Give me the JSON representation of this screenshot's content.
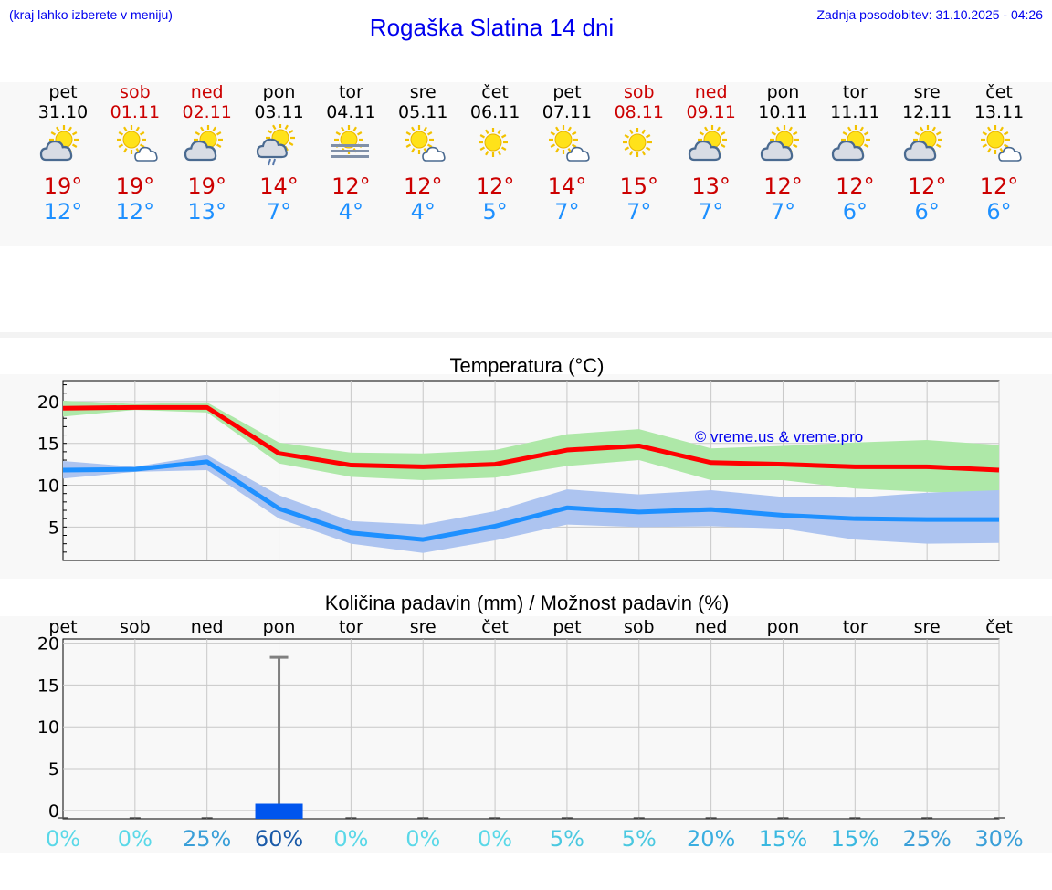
{
  "header": {
    "hint": "(kraj lahko izberete v meniju)",
    "title": "Rogaška Slatina 14 dni",
    "updated": "Zadnja posodobitev: 31.10.2025 - 04:26"
  },
  "colors": {
    "weekday": "#000000",
    "weekend": "#cc0000",
    "tmax": "#cc0000",
    "tmin": "#1e90ff",
    "watermark": "#0000ee"
  },
  "days": [
    {
      "name": "pet",
      "date": "31.10",
      "weekend": false,
      "icon": "sun-cloud-icon",
      "tmax": "19°",
      "tmin": "12°"
    },
    {
      "name": "sob",
      "date": "01.11",
      "weekend": true,
      "icon": "sun-small-cloud-icon",
      "tmax": "19°",
      "tmin": "12°"
    },
    {
      "name": "ned",
      "date": "02.11",
      "weekend": true,
      "icon": "sun-cloud-icon",
      "tmax": "19°",
      "tmin": "13°"
    },
    {
      "name": "pon",
      "date": "03.11",
      "weekend": false,
      "icon": "sun-cloud-rain-icon",
      "tmax": "14°",
      "tmin": "7°"
    },
    {
      "name": "tor",
      "date": "04.11",
      "weekend": false,
      "icon": "sun-fog-icon",
      "tmax": "12°",
      "tmin": "4°"
    },
    {
      "name": "sre",
      "date": "05.11",
      "weekend": false,
      "icon": "sun-small-cloud-icon",
      "tmax": "12°",
      "tmin": "4°"
    },
    {
      "name": "čet",
      "date": "06.11",
      "weekend": false,
      "icon": "sun-icon",
      "tmax": "12°",
      "tmin": "5°"
    },
    {
      "name": "pet",
      "date": "07.11",
      "weekend": false,
      "icon": "sun-small-cloud-icon",
      "tmax": "14°",
      "tmin": "7°"
    },
    {
      "name": "sob",
      "date": "08.11",
      "weekend": true,
      "icon": "sun-icon",
      "tmax": "15°",
      "tmin": "7°"
    },
    {
      "name": "ned",
      "date": "09.11",
      "weekend": true,
      "icon": "sun-cloud-icon",
      "tmax": "13°",
      "tmin": "7°"
    },
    {
      "name": "pon",
      "date": "10.11",
      "weekend": false,
      "icon": "sun-cloud-icon",
      "tmax": "12°",
      "tmin": "7°"
    },
    {
      "name": "tor",
      "date": "11.11",
      "weekend": false,
      "icon": "sun-cloud-icon",
      "tmax": "12°",
      "tmin": "6°"
    },
    {
      "name": "sre",
      "date": "12.11",
      "weekend": false,
      "icon": "sun-cloud-icon",
      "tmax": "12°",
      "tmin": "6°"
    },
    {
      "name": "čet",
      "date": "13.11",
      "weekend": false,
      "icon": "sun-small-cloud-icon",
      "tmax": "12°",
      "tmin": "6°"
    }
  ],
  "chart_data": [
    {
      "type": "line",
      "title": "Temperatura (°C)",
      "xlabel": "",
      "ylabel": "",
      "x": [
        0,
        1,
        2,
        3,
        4,
        5,
        6,
        7,
        8,
        9,
        10,
        11,
        12,
        13
      ],
      "ylim": [
        1,
        22.5
      ],
      "yticks": [
        5,
        10,
        15,
        20
      ],
      "grid": true,
      "watermark": "© vreme.us & vreme.pro",
      "series": [
        {
          "name": "max",
          "color": "#ff0000",
          "band_color": "#aee8a8",
          "values": [
            19.2,
            19.3,
            19.3,
            13.8,
            12.4,
            12.2,
            12.5,
            14.2,
            14.7,
            12.7,
            12.5,
            12.2,
            12.2,
            11.8
          ],
          "band_low": [
            18.2,
            19.0,
            18.7,
            12.6,
            11.0,
            10.6,
            10.9,
            12.3,
            13.0,
            10.6,
            10.6,
            9.6,
            9.2,
            8.9
          ],
          "band_high": [
            20.1,
            19.7,
            19.9,
            15.1,
            13.9,
            13.8,
            14.2,
            16.1,
            16.7,
            14.4,
            14.7,
            15.1,
            15.4,
            14.8
          ]
        },
        {
          "name": "min",
          "color": "#1e90ff",
          "band_color": "#adc4f0",
          "values": [
            11.8,
            11.9,
            12.8,
            7.2,
            4.3,
            3.5,
            5.1,
            7.3,
            6.8,
            7.1,
            6.4,
            6.0,
            5.9,
            5.9
          ],
          "band_low": [
            10.8,
            11.6,
            11.8,
            6.0,
            3.0,
            1.9,
            3.4,
            5.3,
            5.0,
            5.1,
            4.8,
            3.5,
            3.0,
            3.1
          ],
          "band_high": [
            12.9,
            12.2,
            13.6,
            8.8,
            5.7,
            5.3,
            6.9,
            9.5,
            8.9,
            9.4,
            8.6,
            8.5,
            9.1,
            9.4
          ]
        }
      ]
    },
    {
      "type": "bar",
      "title": "Količina padavin (mm) / Možnost padavin (%)",
      "categories": [
        "pet",
        "sob",
        "ned",
        "pon",
        "tor",
        "sre",
        "čet",
        "pet",
        "sob",
        "ned",
        "pon",
        "tor",
        "sre",
        "čet"
      ],
      "ylim": [
        -1,
        20.5
      ],
      "yticks": [
        0,
        5,
        10,
        15,
        20
      ],
      "grid": true,
      "values": [
        0,
        0,
        0,
        0.8,
        0,
        0,
        0,
        0,
        0,
        0,
        0,
        0,
        0,
        0
      ],
      "error_high": [
        0,
        0,
        0,
        18.3,
        0,
        0,
        0,
        0,
        0,
        0,
        0,
        0,
        0,
        0
      ],
      "bar_color": "#0055ee",
      "whisker_color": "#808080",
      "probability": [
        "0%",
        "0%",
        "25%",
        "60%",
        "0%",
        "0%",
        "0%",
        "5%",
        "5%",
        "20%",
        "15%",
        "15%",
        "25%",
        "30%"
      ],
      "probability_colors": [
        "#5ad8e8",
        "#5ad8e8",
        "#3a9fd8",
        "#1a5aa8",
        "#5ad8e8",
        "#5ad8e8",
        "#5ad8e8",
        "#4ac8e0",
        "#4ac8e0",
        "#3aaee0",
        "#3ab8e0",
        "#3ab8e0",
        "#3a9fd8",
        "#3a9fd8"
      ]
    }
  ]
}
